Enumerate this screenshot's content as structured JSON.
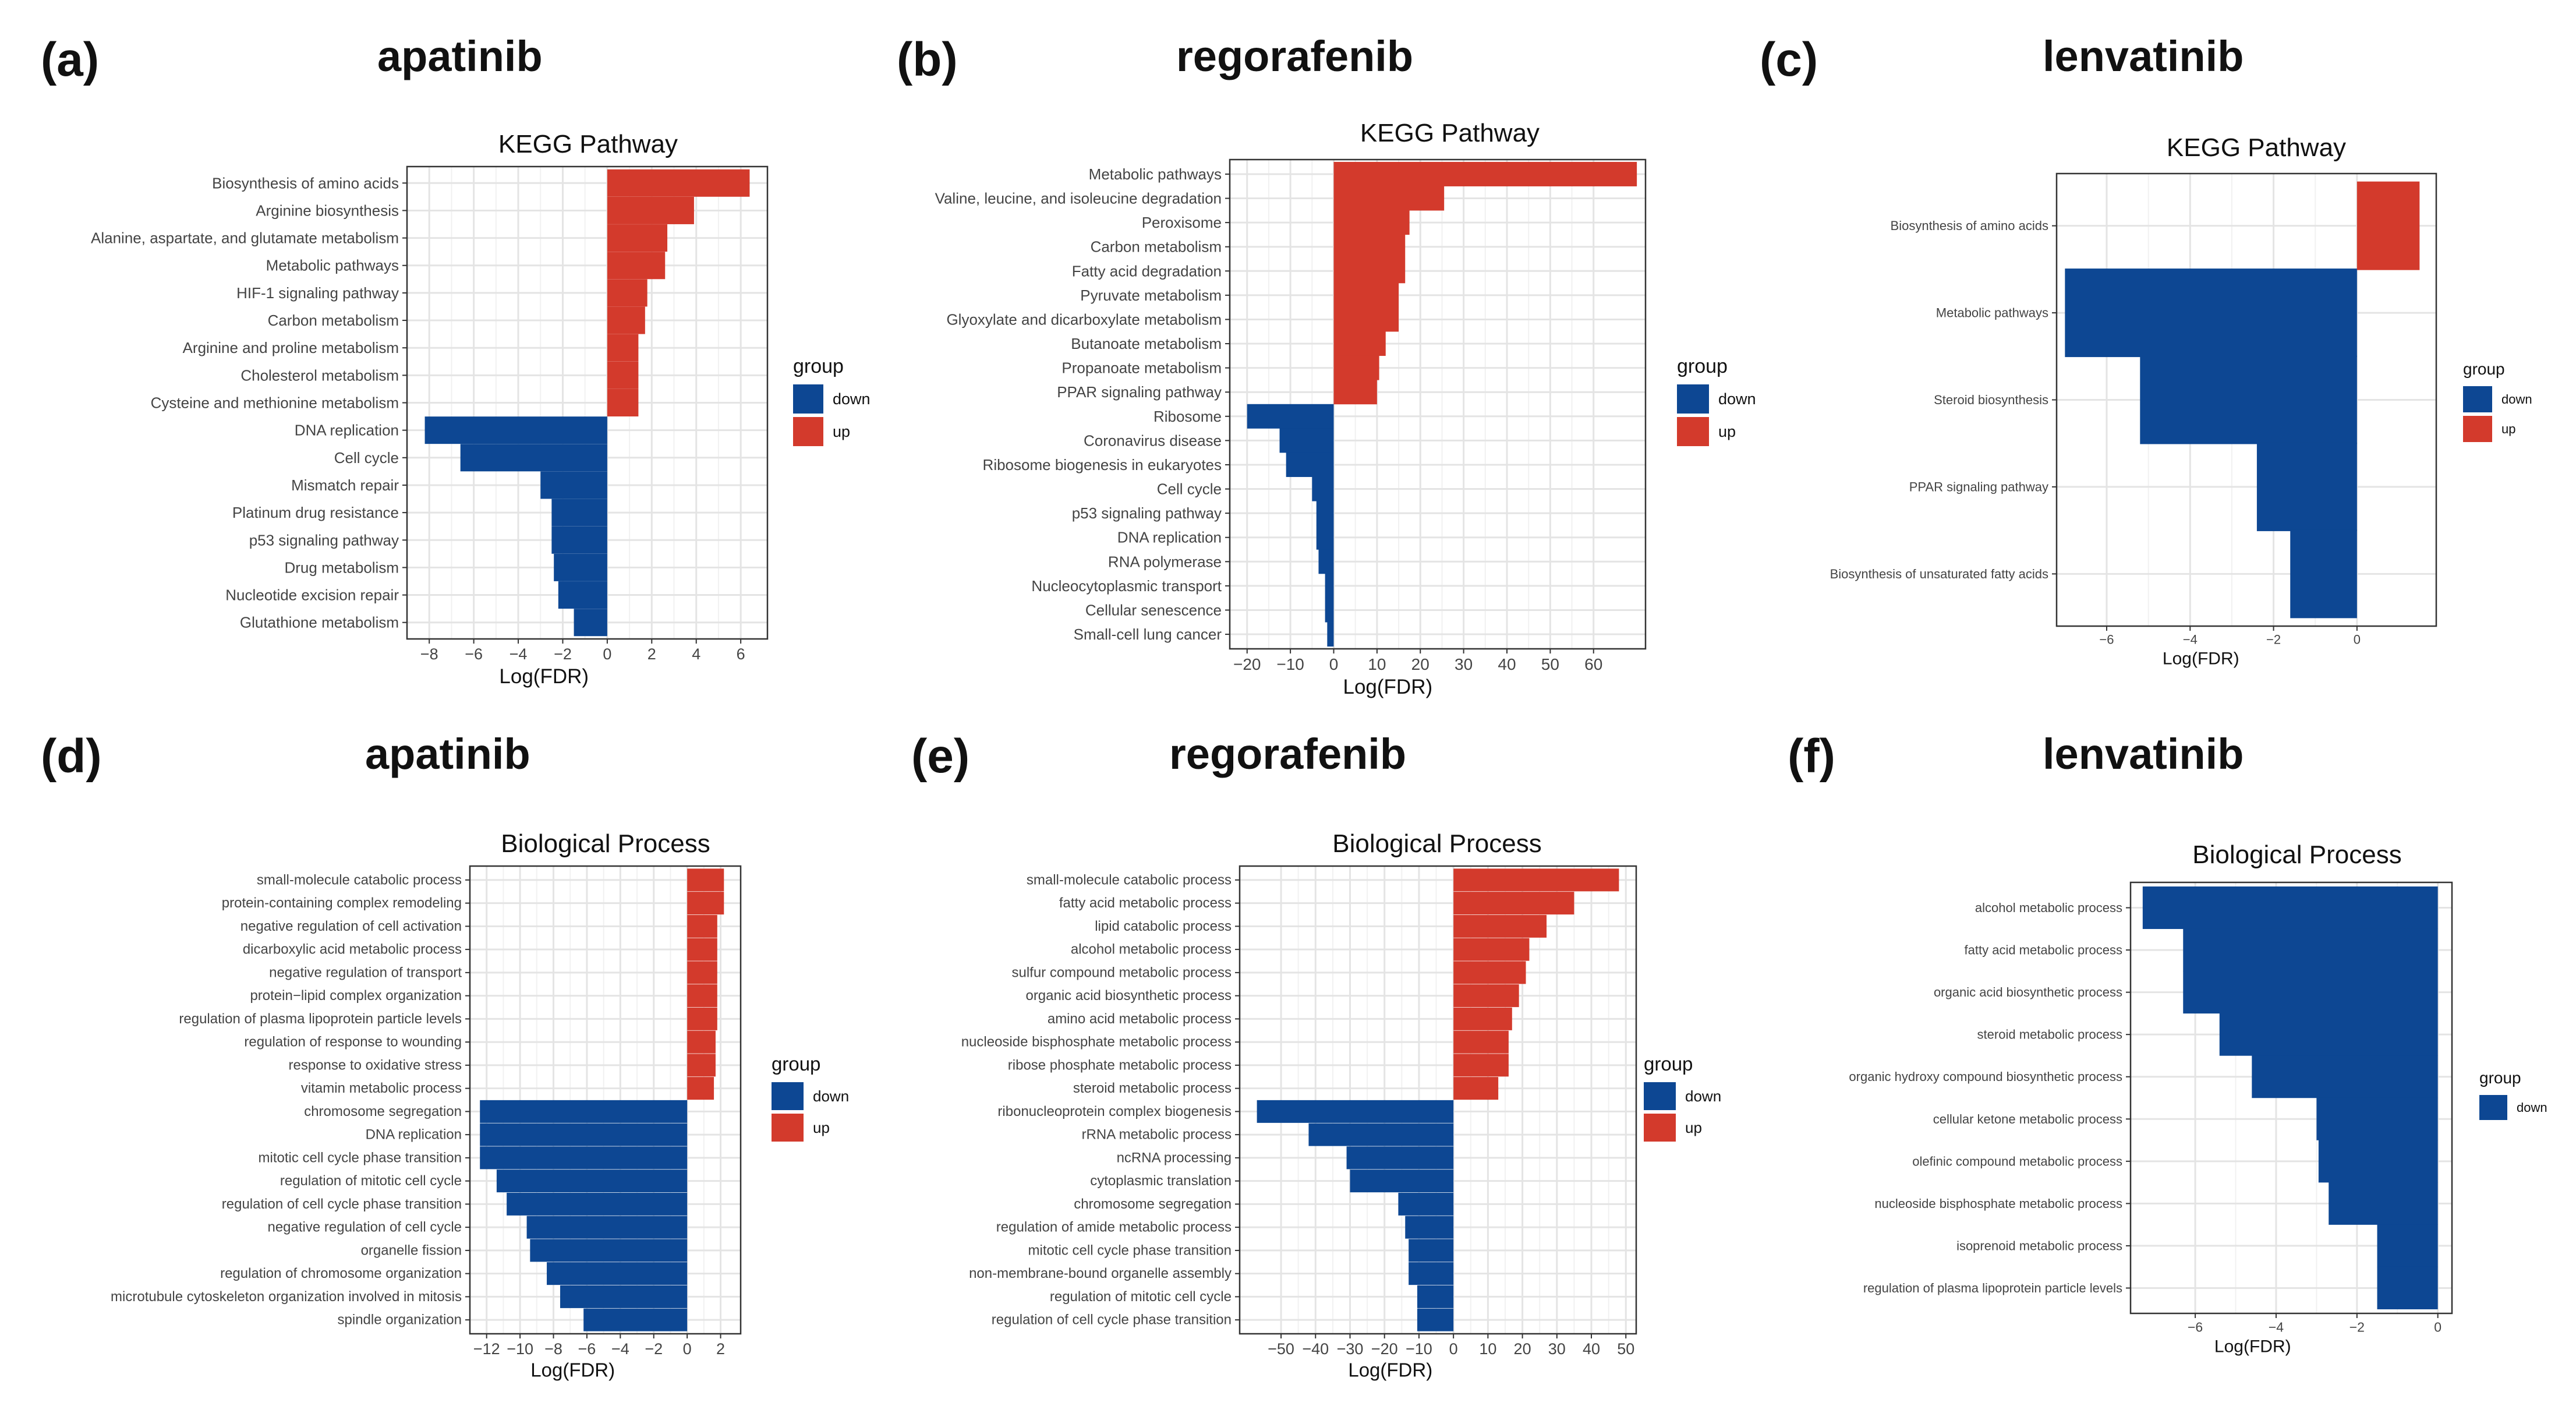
{
  "colors": {
    "up": "#d33a2c",
    "down": "#0d4793",
    "grid_major": "#e4e4e4",
    "grid_minor": "#f1f1f1",
    "panel_border": "#333333"
  },
  "chart_data": [
    {
      "id": "a",
      "panel_label": "(a)",
      "drug": "apatinib",
      "type": "bar",
      "orientation": "horizontal",
      "title": "KEGG Pathway",
      "xlabel": "Log(FDR)",
      "xlim": [
        -9,
        7.2
      ],
      "xticks": [
        -8,
        -6,
        -4,
        -2,
        0,
        2,
        4,
        6
      ],
      "legend": {
        "title": "group",
        "entries": [
          "down",
          "up"
        ],
        "position": "right"
      },
      "categories": [
        "Biosynthesis of amino acids",
        "Arginine biosynthesis",
        "Alanine, aspartate, and glutamate metabolism",
        "Metabolic pathways",
        "HIF-1 signaling pathway",
        "Carbon metabolism",
        "Arginine and proline metabolism",
        "Cholesterol metabolism",
        "Cysteine and methionine metabolism",
        "DNA replication",
        "Cell cycle",
        "Mismatch repair",
        "Platinum drug resistance",
        "p53 signaling pathway",
        "Drug metabolism",
        "Nucleotide excision repair",
        "Glutathione metabolism"
      ],
      "values": [
        6.4,
        3.9,
        2.7,
        2.6,
        1.8,
        1.7,
        1.4,
        1.4,
        1.4,
        -8.2,
        -6.6,
        -3.0,
        -2.5,
        -2.5,
        -2.4,
        -2.2,
        -1.5
      ],
      "groups": [
        "up",
        "up",
        "up",
        "up",
        "up",
        "up",
        "up",
        "up",
        "up",
        "down",
        "down",
        "down",
        "down",
        "down",
        "down",
        "down",
        "down"
      ]
    },
    {
      "id": "b",
      "panel_label": "(b)",
      "drug": "regorafenib",
      "type": "bar",
      "orientation": "horizontal",
      "title": "KEGG Pathway",
      "xlabel": "Log(FDR)",
      "xlim": [
        -24,
        72
      ],
      "xticks": [
        -20,
        -10,
        0,
        10,
        20,
        30,
        40,
        50,
        60
      ],
      "legend": {
        "title": "group",
        "entries": [
          "down",
          "up"
        ],
        "position": "right"
      },
      "categories": [
        "Metabolic pathways",
        "Valine, leucine, and isoleucine degradation",
        "Peroxisome",
        "Carbon metabolism",
        "Fatty acid degradation",
        "Pyruvate metabolism",
        "Glyoxylate and dicarboxylate metabolism",
        "Butanoate metabolism",
        "Propanoate metabolism",
        "PPAR signaling pathway",
        "Ribosome",
        "Coronavirus disease",
        "Ribosome biogenesis in eukaryotes",
        "Cell cycle",
        "p53 signaling pathway",
        "DNA replication",
        "RNA polymerase",
        "Nucleocytoplasmic transport",
        "Cellular senescence",
        "Small-cell lung cancer"
      ],
      "values": [
        70,
        25.5,
        17.5,
        16.5,
        16.5,
        15,
        15,
        12,
        10.5,
        10,
        -20,
        -12.5,
        -11,
        -5,
        -4,
        -4,
        -3.5,
        -2,
        -2,
        -1.5
      ],
      "groups": [
        "up",
        "up",
        "up",
        "up",
        "up",
        "up",
        "up",
        "up",
        "up",
        "up",
        "down",
        "down",
        "down",
        "down",
        "down",
        "down",
        "down",
        "down",
        "down",
        "down"
      ]
    },
    {
      "id": "c",
      "panel_label": "(c)",
      "drug": "lenvatinib",
      "type": "bar",
      "orientation": "horizontal",
      "title": "KEGG Pathway",
      "xlabel": "Log(FDR)",
      "xlim": [
        -7.2,
        1.9
      ],
      "xticks": [
        -6,
        -4,
        -2,
        0
      ],
      "legend": {
        "title": "group",
        "entries": [
          "down",
          "up"
        ],
        "position": "right"
      },
      "categories": [
        "Biosynthesis of amino acids",
        "Metabolic pathways",
        "Steroid biosynthesis",
        "PPAR signaling pathway",
        "Biosynthesis of unsaturated fatty acids"
      ],
      "values": [
        1.5,
        -7.0,
        -5.2,
        -2.4,
        -1.6
      ],
      "groups": [
        "up",
        "down",
        "down",
        "down",
        "down"
      ]
    },
    {
      "id": "d",
      "panel_label": "(d)",
      "drug": "apatinib",
      "type": "bar",
      "orientation": "horizontal",
      "title": "Biological Process",
      "xlabel": "Log(FDR)",
      "xlim": [
        -13,
        3.2
      ],
      "xticks": [
        -12,
        -10,
        -8,
        -6,
        -4,
        -2,
        0,
        2
      ],
      "legend": {
        "title": "group",
        "entries": [
          "down",
          "up"
        ],
        "position": "right"
      },
      "categories": [
        "small-molecule catabolic process",
        "protein-containing complex remodeling",
        "negative regulation of cell activation",
        "dicarboxylic acid metabolic process",
        "negative regulation of transport",
        "protein−lipid complex organization",
        "regulation of plasma lipoprotein particle levels",
        "regulation of response to wounding",
        "response to oxidative stress",
        "vitamin metabolic process",
        "chromosome segregation",
        "DNA replication",
        "mitotic cell cycle phase transition",
        "regulation of mitotic cell cycle",
        "regulation of cell cycle phase transition",
        "negative regulation of cell cycle",
        "organelle fission",
        "regulation of chromosome organization",
        "microtubule cytoskeleton organization involved in mitosis",
        "spindle organization"
      ],
      "values": [
        2.2,
        2.2,
        1.8,
        1.8,
        1.8,
        1.8,
        1.8,
        1.7,
        1.7,
        1.6,
        -12.4,
        -12.4,
        -12.4,
        -11.4,
        -10.8,
        -9.6,
        -9.4,
        -8.4,
        -7.6,
        -6.2
      ],
      "groups": [
        "up",
        "up",
        "up",
        "up",
        "up",
        "up",
        "up",
        "up",
        "up",
        "up",
        "down",
        "down",
        "down",
        "down",
        "down",
        "down",
        "down",
        "down",
        "down",
        "down"
      ]
    },
    {
      "id": "e",
      "panel_label": "(e)",
      "drug": "regorafenib",
      "type": "bar",
      "orientation": "horizontal",
      "title": "Biological Process",
      "xlabel": "Log(FDR)",
      "xlim": [
        -62,
        53
      ],
      "xticks": [
        -50,
        -40,
        -30,
        -20,
        -10,
        0,
        10,
        20,
        30,
        40,
        50
      ],
      "legend": {
        "title": "group",
        "entries": [
          "down",
          "up"
        ],
        "position": "right"
      },
      "categories": [
        "small-molecule catabolic process",
        "fatty acid metabolic process",
        "lipid catabolic process",
        "alcohol metabolic process",
        "sulfur compound metabolic process",
        "organic acid biosynthetic process",
        "amino acid metabolic process",
        "nucleoside bisphosphate metabolic process",
        "ribose phosphate metabolic process",
        "steroid metabolic process",
        "ribonucleoprotein complex biogenesis",
        "rRNA metabolic process",
        "ncRNA processing",
        "cytoplasmic translation",
        "chromosome segregation",
        "regulation of amide metabolic process",
        "mitotic cell cycle phase transition",
        "non-membrane-bound organelle assembly ",
        "regulation of mitotic cell cycle",
        "regulation of cell cycle phase transition"
      ],
      "values": [
        48,
        35,
        27,
        22,
        21,
        19,
        17,
        16,
        16,
        13,
        -57,
        -42,
        -31,
        -30,
        -16,
        -14,
        -13,
        -13,
        -10.5,
        -10.5
      ],
      "groups": [
        "up",
        "up",
        "up",
        "up",
        "up",
        "up",
        "up",
        "up",
        "up",
        "up",
        "down",
        "down",
        "down",
        "down",
        "down",
        "down",
        "down",
        "down",
        "down",
        "down"
      ]
    },
    {
      "id": "f",
      "panel_label": "(f)",
      "drug": "lenvatinib",
      "type": "bar",
      "orientation": "horizontal",
      "title": "Biological Process",
      "xlabel": "Log(FDR)",
      "xlim": [
        -7.6,
        0.35
      ],
      "xticks": [
        -6,
        -4,
        -2,
        0
      ],
      "legend": {
        "title": "group",
        "entries": [
          "down"
        ],
        "position": "right"
      },
      "categories": [
        "alcohol metabolic process",
        "fatty acid metabolic process",
        "organic acid biosynthetic process",
        "steroid metabolic process",
        "organic hydroxy compound biosynthetic process",
        "cellular ketone metabolic process",
        "olefinic compound metabolic process",
        "nucleoside bisphosphate metabolic process",
        "isoprenoid metabolic process",
        "regulation of plasma lipoprotein particle levels"
      ],
      "values": [
        -7.3,
        -6.3,
        -6.3,
        -5.4,
        -4.6,
        -3.0,
        -2.95,
        -2.7,
        -1.5,
        -1.5
      ],
      "groups": [
        "down",
        "down",
        "down",
        "down",
        "down",
        "down",
        "down",
        "down",
        "down",
        "down"
      ]
    }
  ]
}
